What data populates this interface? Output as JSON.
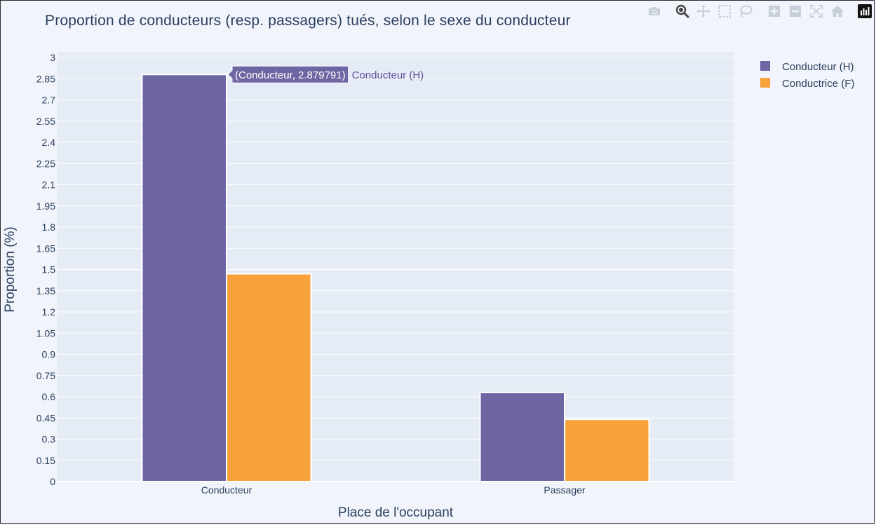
{
  "chart_data": {
    "type": "bar",
    "title": "Proportion de conducteurs (resp. passagers) tués, selon le sexe du conducteur",
    "xlabel": "Place de l'occupant",
    "ylabel": "Proportion (%)",
    "categories": [
      "Conducteur",
      "Passager"
    ],
    "series": [
      {
        "name": "Conducteur (H)",
        "color": "#6e66a3",
        "values": [
          2.879791,
          0.63
        ]
      },
      {
        "name": "Conductrice (F)",
        "color": "#f7a23a",
        "values": [
          1.47,
          0.44
        ]
      }
    ],
    "ylim": [
      0,
      3
    ],
    "yticks": [
      "0",
      "0.15",
      "0.3",
      "0.45",
      "0.6",
      "0.75",
      "0.9",
      "1.05",
      "1.2",
      "1.35",
      "1.5",
      "1.65",
      "1.8",
      "1.95",
      "2.1",
      "2.25",
      "2.4",
      "2.55",
      "2.7",
      "2.85",
      "3"
    ],
    "grid": true,
    "legend_position": "top-right",
    "plot_bgcolor": "#e5ecf6",
    "paper_bgcolor": "#f1f4fa",
    "hover": {
      "series_index": 0,
      "category_index": 0,
      "text": "(Conducteur, 2.879791)",
      "series_label": "Conducteur (H)"
    }
  },
  "modebar": [
    {
      "icon": "camera-icon",
      "label": "Download plot as png"
    },
    {
      "icon": "zoom-icon",
      "label": "Zoom"
    },
    {
      "icon": "pan-icon",
      "label": "Pan"
    },
    {
      "icon": "box-select-icon",
      "label": "Box Select"
    },
    {
      "icon": "lasso-select-icon",
      "label": "Lasso Select"
    },
    {
      "icon": "zoom-in-icon",
      "label": "Zoom in"
    },
    {
      "icon": "zoom-out-icon",
      "label": "Zoom out"
    },
    {
      "icon": "autoscale-icon",
      "label": "Autoscale"
    },
    {
      "icon": "reset-axes-icon",
      "label": "Reset axes"
    },
    {
      "icon": "plotly-logo-icon",
      "label": "Produced with Plotly"
    }
  ]
}
